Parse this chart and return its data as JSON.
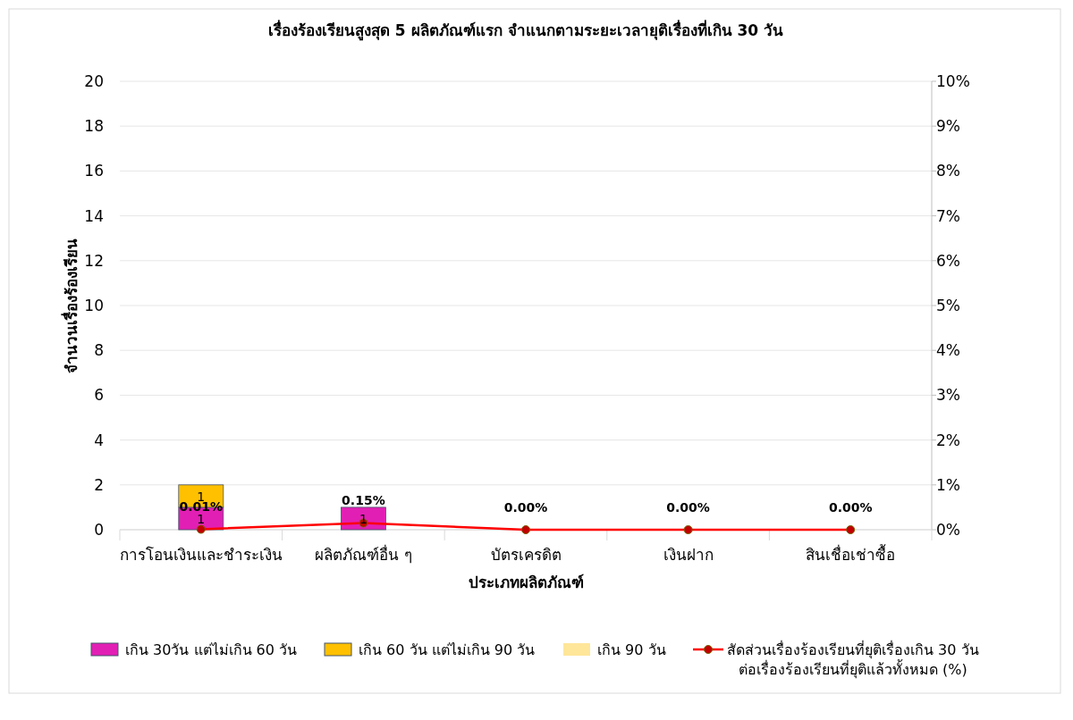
{
  "chart_data": {
    "type": "bar",
    "stacked": true,
    "title": "เรื่องร้องเรียนสูงสุด 5 ผลิตภัณฑ์แรก จำแนกตามระยะเวลายุติเรื่องที่เกิน 30 วัน",
    "xlabel": "ประเภทผลิตภัณฑ์",
    "ylabel": "จำนวนเรื่องร้องเรียน",
    "categories": [
      "การโอนเงินและชำระเงิน",
      "ผลิตภัณฑ์อื่น ๆ",
      "บัตรเครดิต",
      "เงินฝาก",
      "สินเชื่อเช่าซื้อ"
    ],
    "ylim": [
      0,
      20
    ],
    "yticks": [
      0,
      2,
      4,
      6,
      8,
      10,
      12,
      14,
      16,
      18,
      20
    ],
    "y2lim": [
      0,
      10
    ],
    "y2ticks": [
      {
        "value": 0,
        "label": "0%"
      },
      {
        "value": 1,
        "label": "1%"
      },
      {
        "value": 2,
        "label": "2%"
      },
      {
        "value": 3,
        "label": "3%"
      },
      {
        "value": 4,
        "label": "4%"
      },
      {
        "value": 5,
        "label": "5%"
      },
      {
        "value": 6,
        "label": "6%"
      },
      {
        "value": 7,
        "label": "7%"
      },
      {
        "value": 8,
        "label": "8%"
      },
      {
        "value": 9,
        "label": "9%"
      },
      {
        "value": 10,
        "label": "10%"
      }
    ],
    "grid": "y",
    "legend": "bottom",
    "marker": "circle",
    "series": [
      {
        "name": "เกิน 30วัน แต่ไม่เกิน 60 วัน",
        "color": "#e21fb4",
        "values": [
          1,
          1,
          0,
          0,
          0
        ],
        "value_labels": [
          "1",
          "1",
          null,
          null,
          null
        ]
      },
      {
        "name": "เกิน 60 วัน แต่ไม่เกิน 90 วัน",
        "color": "#ffc000",
        "values": [
          1,
          0,
          0,
          0,
          0
        ],
        "value_labels": [
          "1",
          null,
          null,
          null,
          null
        ]
      },
      {
        "name": "เกิน 90 วัน",
        "color": "#ffe699",
        "values": [
          0,
          0,
          0,
          0,
          0
        ]
      },
      {
        "name": "สัดส่วนเรื่องร้องเรียนที่ยุติเรื่องเกิน 30 วัน ต่อเรื่องร้องเรียนที่ยุติแล้วทั้งหมด (%)",
        "type": "line",
        "axis": "y2",
        "color": "#ff0000",
        "values": [
          0.01,
          0.15,
          0,
          0,
          0
        ],
        "value_labels": [
          "0.01%",
          "0.15%",
          "0.00%",
          "0.00%",
          "0.00%"
        ]
      }
    ]
  }
}
